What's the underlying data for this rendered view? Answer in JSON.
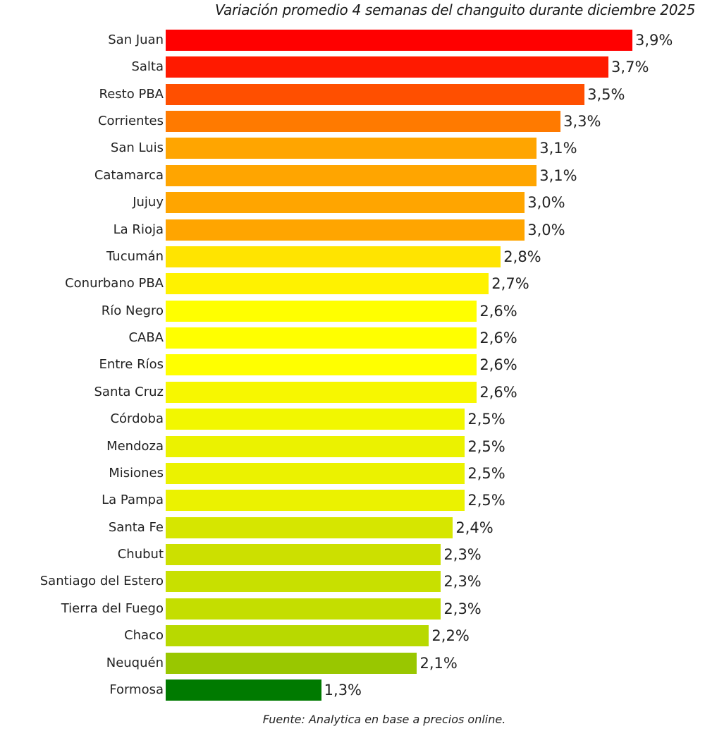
{
  "chart_data": {
    "type": "bar",
    "orientation": "horizontal",
    "title": "Variación promedio 4 semanas del changuito durante diciembre 2025",
    "xlabel": "",
    "ylabel": "",
    "unit": "%",
    "decimal_separator": ",",
    "xlim": [
      0,
      3.9
    ],
    "grid": false,
    "legend": "none",
    "categories": [
      "San Juan",
      "Salta",
      "Resto PBA",
      "Corrientes",
      "San Luis",
      "Catamarca",
      "Jujuy",
      "La Rioja",
      "Tucumán",
      "Conurbano PBA",
      "Río Negro",
      "CABA",
      "Entre Ríos",
      "Santa Cruz",
      "Córdoba",
      "Mendoza",
      "Misiones",
      "La Pampa",
      "Santa Fe",
      "Chubut",
      "Santiago del Estero",
      "Tierra del Fuego",
      "Chaco",
      "Neuquén",
      "Formosa"
    ],
    "values": [
      3.9,
      3.7,
      3.5,
      3.3,
      3.1,
      3.1,
      3.0,
      3.0,
      2.8,
      2.7,
      2.6,
      2.6,
      2.6,
      2.6,
      2.5,
      2.5,
      2.5,
      2.5,
      2.4,
      2.3,
      2.3,
      2.3,
      2.2,
      2.1,
      1.3
    ],
    "value_labels": [
      "3,9%",
      "3,7%",
      "3,5%",
      "3,3%",
      "3,1%",
      "3,1%",
      "3,0%",
      "3,0%",
      "2,8%",
      "2,7%",
      "2,6%",
      "2,6%",
      "2,6%",
      "2,6%",
      "2,5%",
      "2,5%",
      "2,5%",
      "2,5%",
      "2,4%",
      "2,3%",
      "2,3%",
      "2,3%",
      "2,2%",
      "2,1%",
      "1,3%"
    ],
    "colors": [
      "#ff0000",
      "#ff1a00",
      "#ff4f00",
      "#ff7a00",
      "#ffa500",
      "#ffa500",
      "#ffa500",
      "#ffa500",
      "#ffe400",
      "#fff200",
      "#ffff00",
      "#ffff00",
      "#ffff00",
      "#f7f700",
      "#f2f700",
      "#ebf200",
      "#ebf200",
      "#ebf200",
      "#d6e600",
      "#cce000",
      "#c8e000",
      "#c4de00",
      "#b8d900",
      "#99c700",
      "#007a00"
    ],
    "source": "Fuente: Analytica en base a precios online."
  }
}
